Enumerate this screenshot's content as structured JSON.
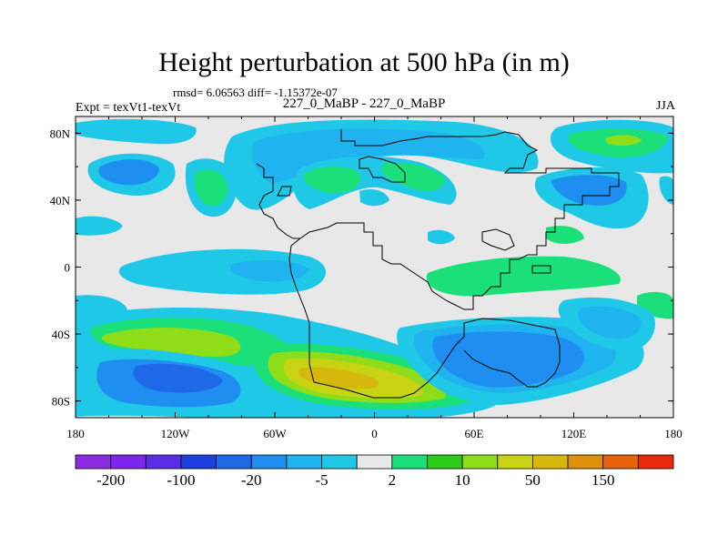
{
  "title": "Height perturbation at 500 hPa (in m)",
  "stats_text": "rmsd= 6.06563 diff= -1.15372e-07",
  "left_label": "Expt = texVt1-texVt",
  "center_label": "227_0_MaBP - 227_0_MaBP",
  "right_label": "JJA",
  "axes": {
    "x_ticks": [
      "180",
      "120W",
      "60W",
      "0",
      "60E",
      "120E",
      "180"
    ],
    "y_ticks": [
      "80N",
      "40N",
      "0",
      "40S",
      "80S"
    ]
  },
  "colorbar": {
    "colors": [
      "#8a2be2",
      "#7b26ea",
      "#5a2ee6",
      "#1e3fe0",
      "#1f68e8",
      "#1e8ff0",
      "#1fb4f0",
      "#20c8e8",
      "#e8e8e8",
      "#1be07a",
      "#2ccc1a",
      "#8fdc18",
      "#c8d413",
      "#d6b80c",
      "#e0900a",
      "#e8620c",
      "#e82a0a"
    ],
    "labels": [
      "-200",
      "-100",
      "-20",
      "-5",
      "2",
      "10",
      "50",
      "150"
    ]
  },
  "palette": {
    "cyan": "#20c8e8",
    "lightblue": "#1fb4f0",
    "blue": "#1e8ff0",
    "darkblue": "#1f68e8",
    "green": "#1be07a",
    "darkgreen": "#2ccc1a",
    "yellowgreen": "#8fdc18",
    "yellow": "#c8d413",
    "gold": "#d6b80c",
    "background": "#e8e8e8"
  }
}
